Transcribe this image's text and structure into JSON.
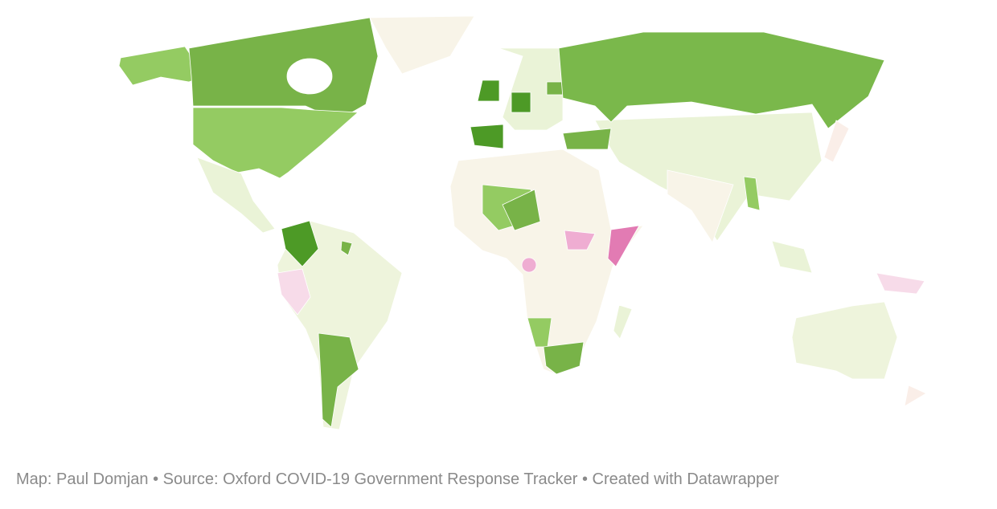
{
  "footer": {
    "text": "Map: Paul Domjan • Source: Oxford COVID-19 Government Response Tracker • Created with Datawrapper"
  }
}
